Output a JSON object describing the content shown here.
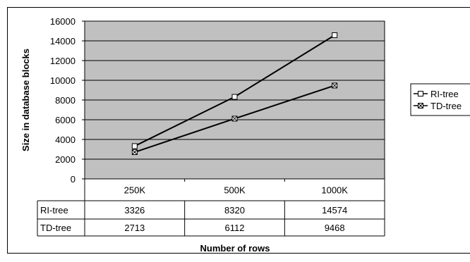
{
  "chart_data": {
    "type": "line",
    "categories": [
      "250K",
      "500K",
      "1000K"
    ],
    "series": [
      {
        "name": "RI-tree",
        "values": [
          3326,
          8320,
          14574
        ],
        "marker": "square"
      },
      {
        "name": "TD-tree",
        "values": [
          2713,
          6112,
          9468
        ],
        "marker": "x-square"
      }
    ],
    "ylabel": "Size in database blocks",
    "xlabel": "Number of rows",
    "ylim": [
      0,
      16000
    ],
    "yticks": [
      0,
      2000,
      4000,
      6000,
      8000,
      10000,
      12000,
      14000,
      16000
    ],
    "grid": true,
    "legend": "right",
    "data_table": true,
    "colors": {
      "plot_bg": "#c0c0c0",
      "line": "#000000",
      "grid": "#000000"
    }
  }
}
